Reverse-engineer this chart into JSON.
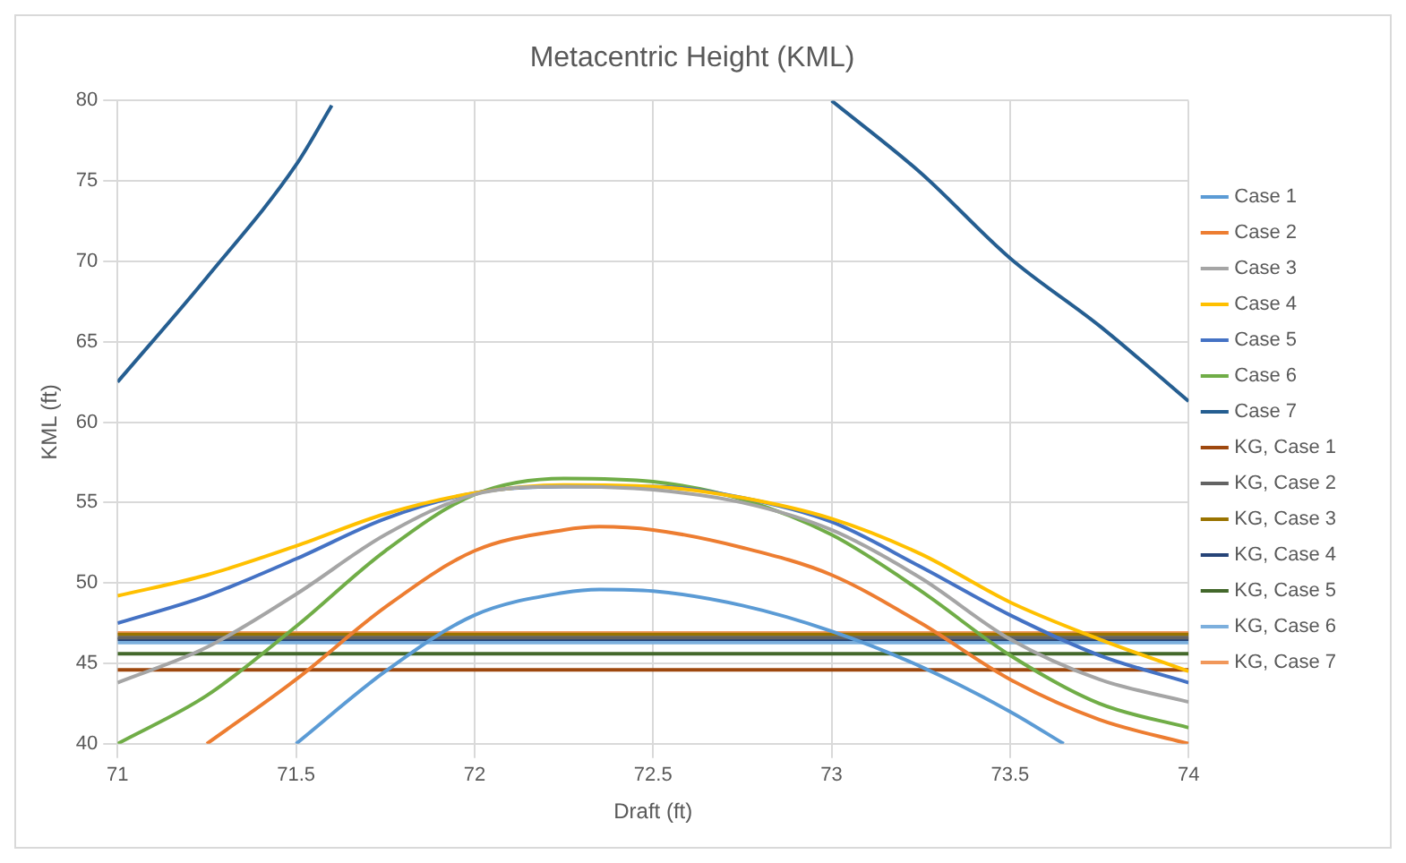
{
  "chart_data": {
    "type": "line",
    "title": "Metacentric Height (KML)",
    "xlabel": "Draft (ft)",
    "ylabel": "KML (ft)",
    "xlim": [
      71,
      74
    ],
    "xticks": [
      71,
      71.5,
      72,
      72.5,
      73,
      73.5,
      74
    ],
    "ylim": [
      40,
      80
    ],
    "yticks": [
      40,
      45,
      50,
      55,
      60,
      65,
      70,
      75,
      80
    ],
    "grid": true,
    "legend": "right",
    "marker": "none",
    "line_style": "solid",
    "series": [
      {
        "name": "Case 1",
        "color": "#5b9bd5",
        "x": [
          71.5,
          71.75,
          72,
          72.25,
          72.35,
          72.5,
          72.75,
          73,
          73.25,
          73.5,
          73.65
        ],
        "values": [
          40,
          44.5,
          48,
          49.4,
          49.6,
          49.5,
          48.6,
          47,
          44.8,
          42,
          40
        ]
      },
      {
        "name": "Case 2",
        "color": "#ed7d31",
        "x": [
          71.25,
          71.5,
          71.75,
          72,
          72.25,
          72.35,
          72.5,
          72.75,
          73,
          73.25,
          73.5,
          73.75,
          74
        ],
        "values": [
          40,
          44,
          48.5,
          52,
          53.3,
          53.5,
          53.3,
          52.2,
          50.5,
          47.5,
          44,
          41.5,
          40
        ]
      },
      {
        "name": "Case 3",
        "color": "#a5a5a5",
        "x": [
          71,
          71.25,
          71.5,
          71.75,
          72,
          72.25,
          72.5,
          72.75,
          73,
          73.25,
          73.5,
          73.75,
          74
        ],
        "values": [
          43.8,
          46,
          49.3,
          53,
          55.5,
          56,
          55.8,
          55,
          53.3,
          50.3,
          46.5,
          44,
          42.6
        ]
      },
      {
        "name": "Case 4",
        "color": "#ffc000",
        "x": [
          71,
          71.25,
          71.5,
          71.75,
          72,
          72.25,
          72.5,
          72.75,
          73,
          73.25,
          73.5,
          73.75,
          74
        ],
        "values": [
          49.2,
          50.5,
          52.3,
          54.3,
          55.6,
          56.1,
          56,
          55.3,
          54,
          51.8,
          48.8,
          46.5,
          44.5
        ]
      },
      {
        "name": "Case 5",
        "color": "#4472c4",
        "x": [
          71,
          71.25,
          71.5,
          71.75,
          72,
          72.25,
          72.5,
          72.75,
          73,
          73.25,
          73.5,
          73.75,
          74
        ],
        "values": [
          47.5,
          49.2,
          51.5,
          54,
          55.6,
          56,
          56,
          55.3,
          53.8,
          51,
          48,
          45.5,
          43.8
        ]
      },
      {
        "name": "Case 6",
        "color": "#70ad47",
        "x": [
          71,
          71.25,
          71.5,
          71.75,
          72,
          72.25,
          72.5,
          72.75,
          73,
          73.25,
          73.5,
          73.75,
          74
        ],
        "values": [
          40,
          43,
          47.3,
          52,
          55.5,
          56.5,
          56.3,
          55.2,
          53,
          49.5,
          45.5,
          42.5,
          41
        ]
      },
      {
        "name": "Case 7",
        "color": "#255e91",
        "x": [
          71,
          71.25,
          71.5,
          71.6,
          72.3,
          73,
          73.25,
          73.5,
          73.75,
          74
        ],
        "values": [
          62.5,
          69,
          76,
          79.7,
          null,
          80,
          75.5,
          70.2,
          66,
          61.3
        ]
      },
      {
        "name": "KG, Case 1",
        "color": "#9e480e",
        "x": [
          71,
          74
        ],
        "values": [
          44.6,
          44.6
        ]
      },
      {
        "name": "KG, Case 2",
        "color": "#636363",
        "x": [
          71,
          74
        ],
        "values": [
          46.6,
          46.6
        ]
      },
      {
        "name": "KG, Case 3",
        "color": "#997300",
        "x": [
          71,
          74
        ],
        "values": [
          46.8,
          46.8
        ]
      },
      {
        "name": "KG, Case 4",
        "color": "#264478",
        "x": [
          71,
          74
        ],
        "values": [
          46.5,
          46.5
        ]
      },
      {
        "name": "KG, Case 5",
        "color": "#43682b",
        "x": [
          71,
          74
        ],
        "values": [
          45.6,
          45.6
        ]
      },
      {
        "name": "KG, Case 6",
        "color": "#7cafdd",
        "x": [
          71,
          74
        ],
        "values": [
          46.3,
          46.3
        ]
      },
      {
        "name": "KG, Case 7",
        "color": "#f1975a",
        "x": [
          71,
          74
        ],
        "values": [
          46.9,
          46.9
        ]
      }
    ]
  }
}
